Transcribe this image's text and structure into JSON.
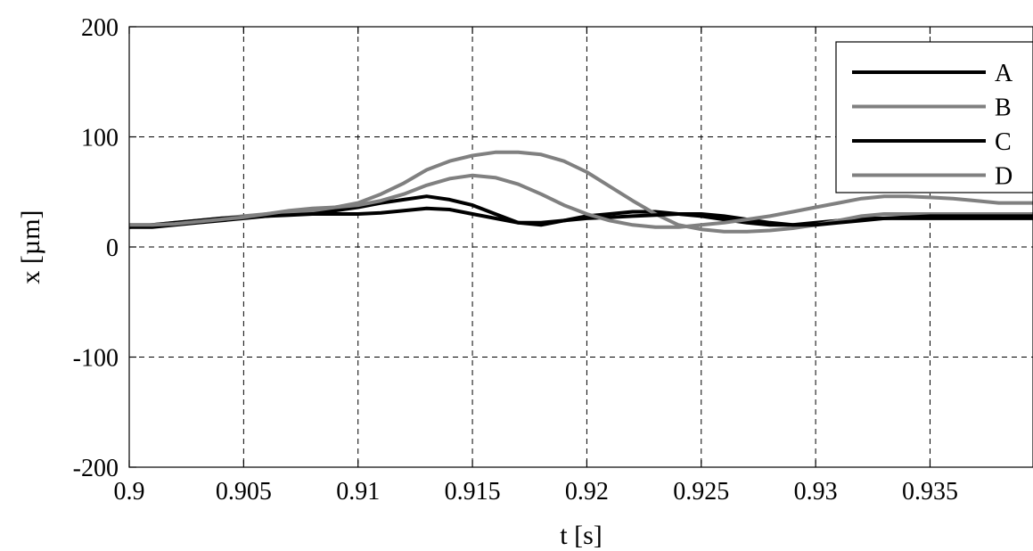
{
  "chart_data": {
    "type": "line",
    "title": "",
    "xlabel": "t [s]",
    "ylabel": "x [µm]",
    "xlim": [
      0.9,
      0.9395
    ],
    "ylim": [
      -200,
      200
    ],
    "grid": true,
    "legend_position": "top-right",
    "xticks": [
      0.9,
      0.905,
      0.91,
      0.915,
      0.92,
      0.925,
      0.93,
      0.935
    ],
    "xtick_labels": [
      "0.9",
      "0.905",
      "0.91",
      "0.915",
      "0.92",
      "0.925",
      "0.93",
      "0.935"
    ],
    "yticks": [
      -200,
      -100,
      0,
      100,
      200
    ],
    "ytick_labels": [
      "-200",
      "-100",
      "0",
      "100",
      "200"
    ],
    "series": [
      {
        "name": "A",
        "color": "#000000",
        "x": [
          0.9,
          0.901,
          0.902,
          0.903,
          0.904,
          0.905,
          0.906,
          0.907,
          0.908,
          0.909,
          0.91,
          0.911,
          0.912,
          0.913,
          0.914,
          0.915,
          0.916,
          0.917,
          0.918,
          0.919,
          0.92,
          0.921,
          0.922,
          0.923,
          0.924,
          0.925,
          0.926,
          0.927,
          0.928,
          0.929,
          0.93,
          0.931,
          0.932,
          0.933,
          0.934,
          0.935,
          0.936,
          0.937,
          0.938,
          0.9395
        ],
        "y": [
          18,
          18,
          20,
          22,
          24,
          26,
          28,
          30,
          32,
          33,
          36,
          40,
          43,
          46,
          43,
          38,
          30,
          22,
          20,
          24,
          28,
          30,
          32,
          32,
          30,
          28,
          25,
          22,
          20,
          20,
          22,
          24,
          26,
          26,
          26,
          26,
          26,
          26,
          26,
          26
        ]
      },
      {
        "name": "B",
        "color": "#808080",
        "x": [
          0.9,
          0.901,
          0.902,
          0.903,
          0.904,
          0.905,
          0.906,
          0.907,
          0.908,
          0.909,
          0.91,
          0.911,
          0.912,
          0.913,
          0.914,
          0.915,
          0.916,
          0.917,
          0.918,
          0.919,
          0.92,
          0.921,
          0.922,
          0.923,
          0.924,
          0.925,
          0.926,
          0.927,
          0.928,
          0.929,
          0.93,
          0.931,
          0.932,
          0.933,
          0.934,
          0.935,
          0.936,
          0.937,
          0.938,
          0.9395
        ],
        "y": [
          20,
          20,
          22,
          24,
          26,
          28,
          30,
          32,
          33,
          36,
          40,
          48,
          58,
          70,
          78,
          83,
          86,
          86,
          84,
          78,
          68,
          55,
          42,
          30,
          20,
          16,
          14,
          14,
          15,
          17,
          20,
          24,
          28,
          30,
          30,
          30,
          30,
          30,
          30,
          30
        ]
      },
      {
        "name": "C",
        "color": "#000000",
        "x": [
          0.9,
          0.901,
          0.902,
          0.903,
          0.904,
          0.905,
          0.906,
          0.907,
          0.908,
          0.909,
          0.91,
          0.911,
          0.912,
          0.913,
          0.914,
          0.915,
          0.916,
          0.917,
          0.918,
          0.919,
          0.92,
          0.921,
          0.922,
          0.923,
          0.924,
          0.925,
          0.926,
          0.927,
          0.928,
          0.929,
          0.93,
          0.931,
          0.932,
          0.933,
          0.934,
          0.935,
          0.936,
          0.937,
          0.938,
          0.9395
        ],
        "y": [
          18,
          20,
          22,
          24,
          26,
          27,
          28,
          29,
          30,
          30,
          30,
          31,
          33,
          35,
          34,
          30,
          26,
          22,
          22,
          24,
          26,
          27,
          28,
          29,
          30,
          30,
          28,
          25,
          22,
          20,
          20,
          22,
          24,
          26,
          27,
          28,
          28,
          28,
          28,
          28
        ]
      },
      {
        "name": "D",
        "color": "#808080",
        "x": [
          0.9,
          0.901,
          0.902,
          0.903,
          0.904,
          0.905,
          0.906,
          0.907,
          0.908,
          0.909,
          0.91,
          0.911,
          0.912,
          0.913,
          0.914,
          0.915,
          0.916,
          0.917,
          0.918,
          0.919,
          0.92,
          0.921,
          0.922,
          0.923,
          0.924,
          0.925,
          0.926,
          0.927,
          0.928,
          0.929,
          0.93,
          0.931,
          0.932,
          0.933,
          0.934,
          0.935,
          0.936,
          0.937,
          0.938,
          0.9395
        ],
        "y": [
          20,
          20,
          21,
          23,
          25,
          27,
          30,
          33,
          35,
          36,
          38,
          42,
          48,
          56,
          62,
          65,
          63,
          57,
          48,
          38,
          30,
          24,
          20,
          18,
          18,
          20,
          22,
          25,
          28,
          32,
          36,
          40,
          44,
          46,
          46,
          45,
          44,
          42,
          40,
          40
        ]
      }
    ]
  }
}
